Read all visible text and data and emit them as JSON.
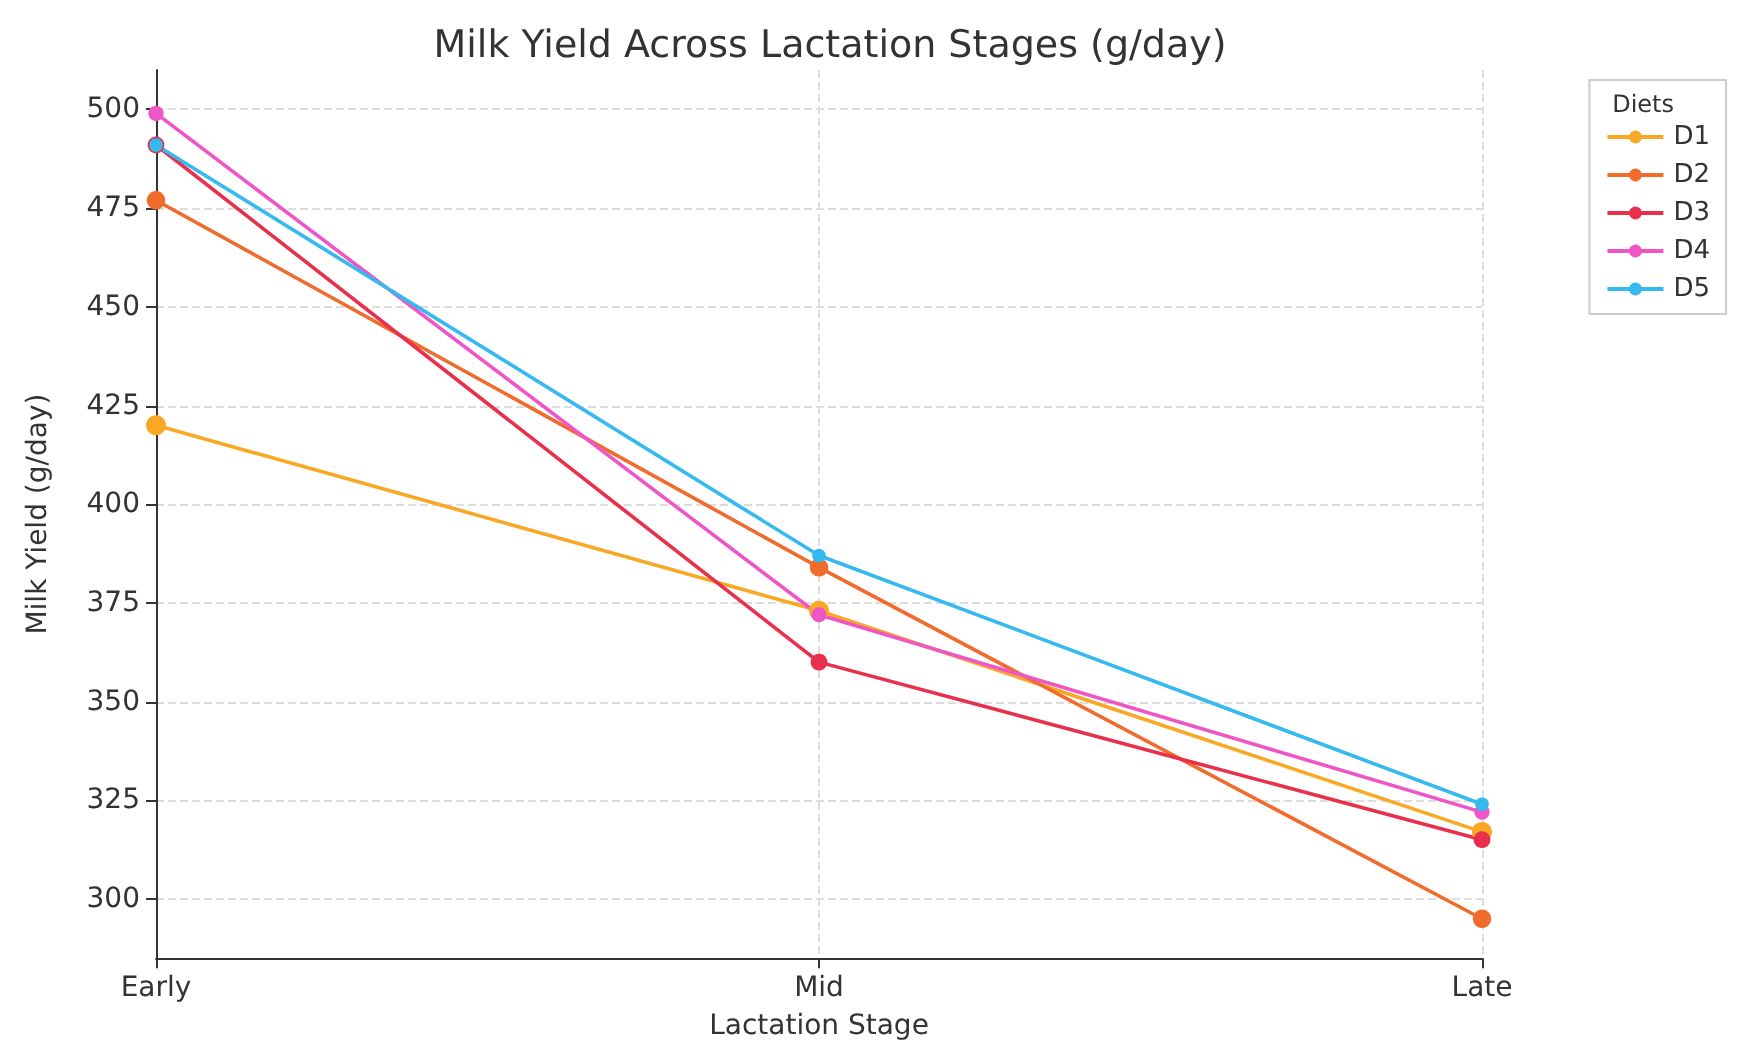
{
  "chart_data": {
    "type": "line",
    "title": "Milk Yield Across Lactation Stages (g/day)",
    "xlabel": "Lactation Stage",
    "ylabel": "Milk Yield (g/day)",
    "legend_title": "Diets",
    "categories": [
      "Early",
      "Mid",
      "Late"
    ],
    "series": [
      {
        "name": "D1",
        "color": "#f9a825",
        "values": [
          420,
          373,
          317
        ]
      },
      {
        "name": "D2",
        "color": "#f06b2c",
        "values": [
          477,
          384,
          295
        ]
      },
      {
        "name": "D3",
        "color": "#e8304c",
        "values": [
          491,
          360,
          315
        ]
      },
      {
        "name": "D4",
        "color": "#f055c8",
        "values": [
          499,
          372,
          322
        ]
      },
      {
        "name": "D5",
        "color": "#35b9ef",
        "values": [
          491,
          387,
          324
        ]
      }
    ],
    "ylim": [
      285,
      510
    ],
    "yticks": [
      300,
      325,
      350,
      375,
      400,
      425,
      450,
      475,
      500
    ],
    "grid": true,
    "legend": "top right",
    "marker": "circle",
    "line_style": "solid"
  }
}
